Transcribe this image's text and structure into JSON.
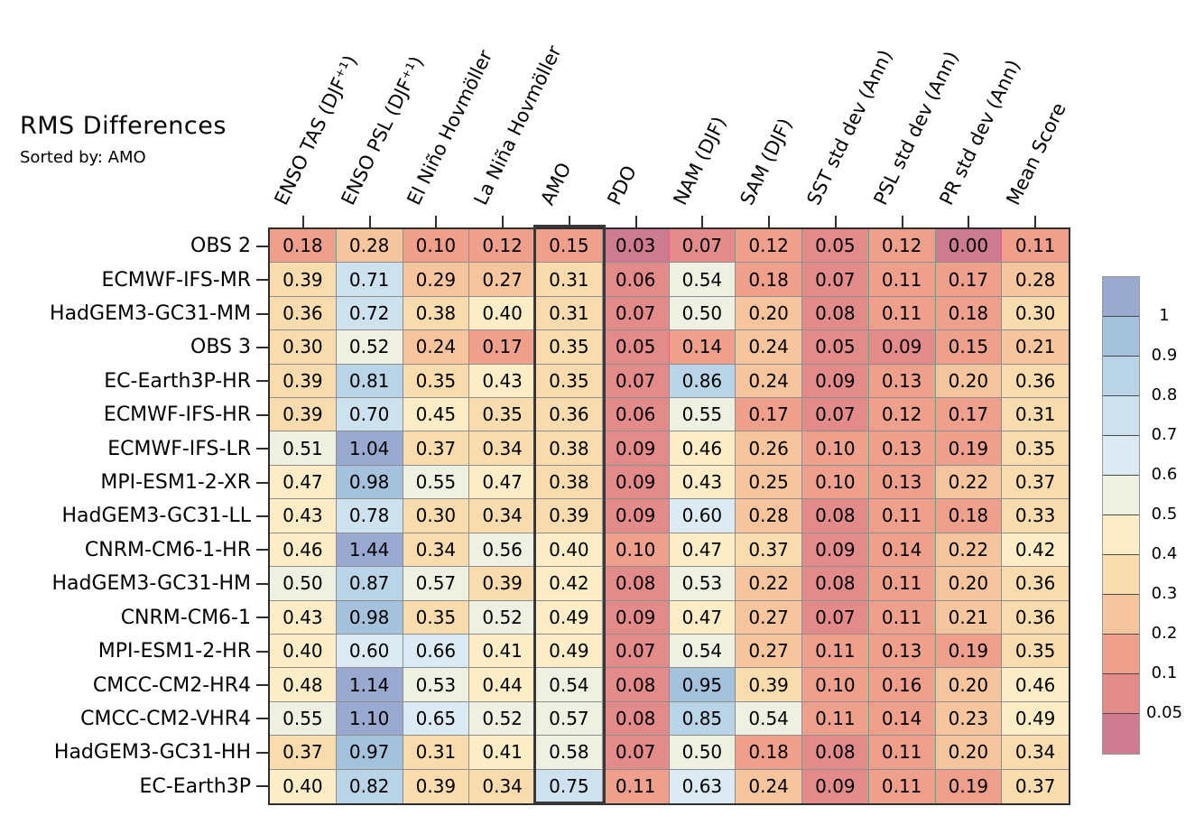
{
  "title": "RMS Differences",
  "subtitle": "Sorted by: AMO",
  "chart_data": {
    "type": "heatmap",
    "title": "RMS Differences",
    "subtitle": "Sorted by: AMO",
    "columns": [
      "ENSO TAS (DJF⁺¹)",
      "ENSO PSL (DJF⁺¹)",
      "El Niño Hovmöller",
      "La Niña Hovmöller",
      "AMO",
      "PDO",
      "NAM (DJF)",
      "SAM (DJF)",
      "SST std dev (Ann)",
      "PSL std dev (Ann)",
      "PR std dev (Ann)",
      "Mean Score"
    ],
    "rows": [
      "OBS 2",
      "ECMWF-IFS-MR",
      "HadGEM3-GC31-MM",
      "OBS 3",
      "EC-Earth3P-HR",
      "ECMWF-IFS-HR",
      "ECMWF-IFS-LR",
      "MPI-ESM1-2-XR",
      "HadGEM3-GC31-LL",
      "CNRM-CM6-1-HR",
      "HadGEM3-GC31-HM",
      "CNRM-CM6-1",
      "MPI-ESM1-2-HR",
      "CMCC-CM2-HR4",
      "CMCC-CM2-VHR4",
      "HadGEM3-GC31-HH",
      "EC-Earth3P"
    ],
    "values": [
      [
        0.18,
        0.28,
        0.1,
        0.12,
        0.15,
        0.03,
        0.07,
        0.12,
        0.05,
        0.12,
        0.0,
        0.11
      ],
      [
        0.39,
        0.71,
        0.29,
        0.27,
        0.31,
        0.06,
        0.54,
        0.18,
        0.07,
        0.11,
        0.17,
        0.28
      ],
      [
        0.36,
        0.72,
        0.38,
        0.4,
        0.31,
        0.07,
        0.5,
        0.2,
        0.08,
        0.11,
        0.18,
        0.3
      ],
      [
        0.3,
        0.52,
        0.24,
        0.17,
        0.35,
        0.05,
        0.14,
        0.24,
        0.05,
        0.09,
        0.15,
        0.21
      ],
      [
        0.39,
        0.81,
        0.35,
        0.43,
        0.35,
        0.07,
        0.86,
        0.24,
        0.09,
        0.13,
        0.2,
        0.36
      ],
      [
        0.39,
        0.7,
        0.45,
        0.35,
        0.36,
        0.06,
        0.55,
        0.17,
        0.07,
        0.12,
        0.17,
        0.31
      ],
      [
        0.51,
        1.04,
        0.37,
        0.34,
        0.38,
        0.09,
        0.46,
        0.26,
        0.1,
        0.13,
        0.19,
        0.35
      ],
      [
        0.47,
        0.98,
        0.55,
        0.47,
        0.38,
        0.09,
        0.43,
        0.25,
        0.1,
        0.13,
        0.22,
        0.37
      ],
      [
        0.43,
        0.78,
        0.3,
        0.34,
        0.39,
        0.09,
        0.6,
        0.28,
        0.08,
        0.11,
        0.18,
        0.33
      ],
      [
        0.46,
        1.44,
        0.34,
        0.56,
        0.4,
        0.1,
        0.47,
        0.37,
        0.09,
        0.14,
        0.22,
        0.42
      ],
      [
        0.5,
        0.87,
        0.57,
        0.39,
        0.42,
        0.08,
        0.53,
        0.22,
        0.08,
        0.11,
        0.2,
        0.36
      ],
      [
        0.43,
        0.98,
        0.35,
        0.52,
        0.49,
        0.09,
        0.47,
        0.27,
        0.07,
        0.11,
        0.21,
        0.36
      ],
      [
        0.4,
        0.6,
        0.66,
        0.41,
        0.49,
        0.07,
        0.54,
        0.27,
        0.11,
        0.13,
        0.19,
        0.35
      ],
      [
        0.48,
        1.14,
        0.53,
        0.44,
        0.54,
        0.08,
        0.95,
        0.39,
        0.1,
        0.16,
        0.2,
        0.46
      ],
      [
        0.55,
        1.1,
        0.65,
        0.52,
        0.57,
        0.08,
        0.85,
        0.54,
        0.11,
        0.14,
        0.23,
        0.49
      ],
      [
        0.37,
        0.97,
        0.31,
        0.41,
        0.58,
        0.07,
        0.5,
        0.18,
        0.08,
        0.11,
        0.2,
        0.34
      ],
      [
        0.4,
        0.82,
        0.39,
        0.34,
        0.75,
        0.11,
        0.63,
        0.24,
        0.09,
        0.11,
        0.19,
        0.37
      ]
    ],
    "highlighted_column": "AMO",
    "colorbar": {
      "tick_labels": [
        "1",
        "0.9",
        "0.8",
        "0.7",
        "0.6",
        "0.5",
        "0.4",
        "0.3",
        "0.2",
        "0.1",
        "0.05"
      ],
      "thresholds": [
        1.0,
        0.9,
        0.8,
        0.7,
        0.6,
        0.5,
        0.4,
        0.3,
        0.2,
        0.1,
        0.05
      ],
      "colors": [
        "#99a9d0",
        "#a5c2dd",
        "#b9d4e7",
        "#cde1ee",
        "#dcebf3",
        "#eef0e2",
        "#fcedc7",
        "#f9dcae",
        "#f6c59e",
        "#efa08c",
        "#e38a8b",
        "#cc7b90"
      ]
    },
    "grid_line_color": "#8e8e8e",
    "frame_color": "#2e2e2e",
    "text_color": "#000000"
  }
}
